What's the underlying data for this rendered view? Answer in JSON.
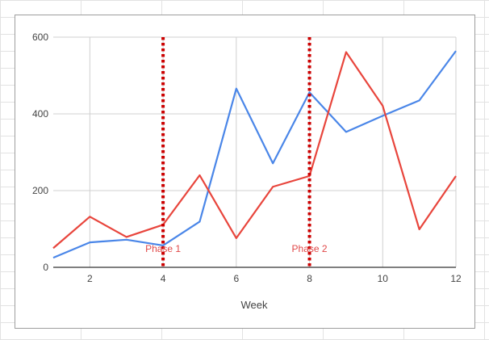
{
  "chart_data": {
    "type": "line",
    "title": "",
    "xlabel": "Week",
    "ylabel": "",
    "x": [
      1,
      2,
      3,
      4,
      5,
      6,
      7,
      8,
      9,
      10,
      11,
      12
    ],
    "xlim": [
      1,
      12
    ],
    "ylim": [
      0,
      600
    ],
    "xticks": [
      2,
      4,
      6,
      8,
      10,
      12
    ],
    "yticks": [
      0,
      200,
      400,
      600
    ],
    "grid": true,
    "legend": "none",
    "series": [
      {
        "color": "#4a86e8",
        "values": [
          25,
          65,
          72,
          57,
          119,
          466,
          271,
          456,
          353,
          395,
          435,
          564
        ]
      },
      {
        "color": "#e8453c",
        "values": [
          50,
          132,
          79,
          111,
          240,
          76,
          210,
          238,
          561,
          421,
          99,
          238
        ]
      }
    ],
    "annotations": [
      {
        "x": 4,
        "label": "Phase 1",
        "color": "#cc0000"
      },
      {
        "x": 8,
        "label": "Phase 2",
        "color": "#cc0000"
      }
    ]
  }
}
